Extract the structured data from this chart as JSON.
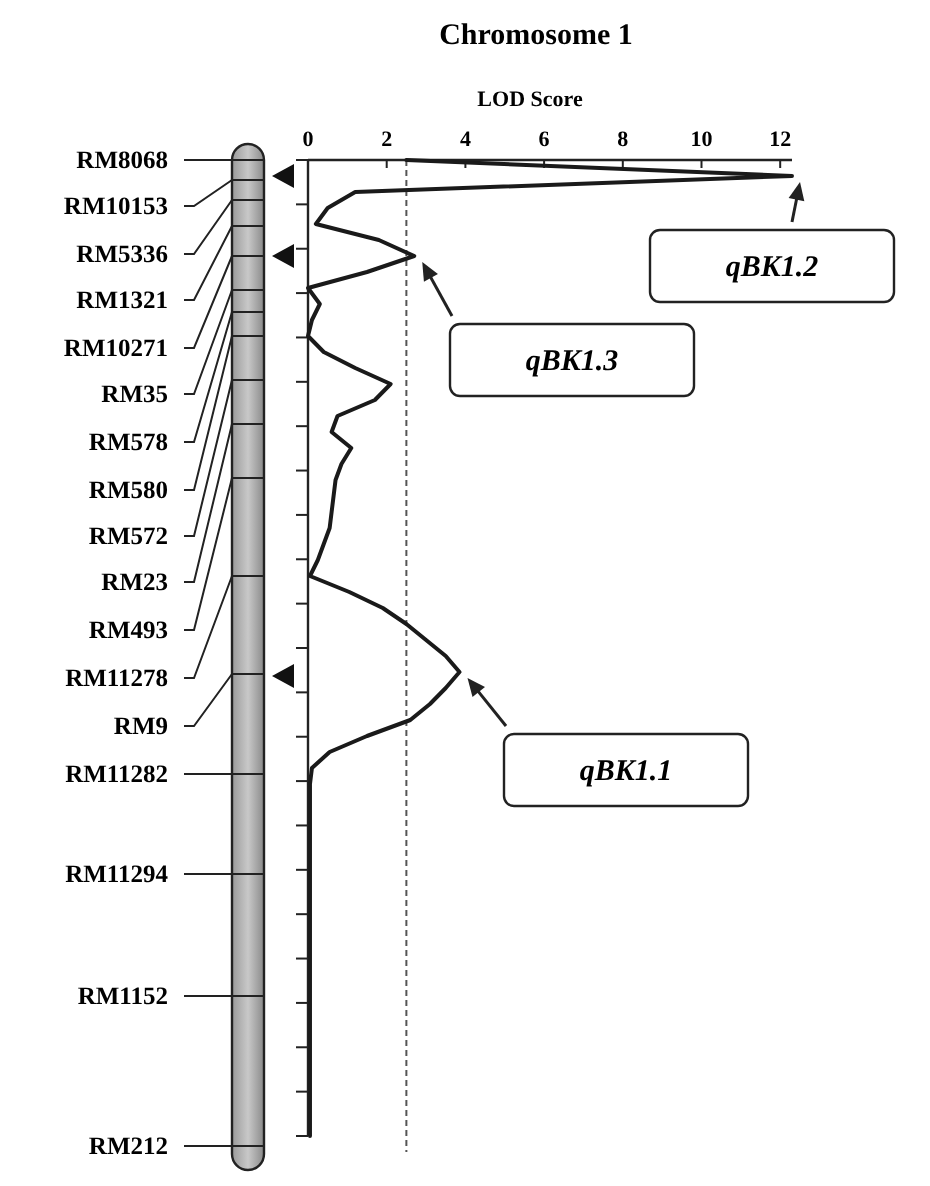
{
  "chart_data": {
    "type": "line",
    "orientation": "horizontal",
    "title": "Chromosome 1",
    "xlabel": "LOD Score",
    "categories": [
      null,
      null,
      null,
      null,
      null,
      null,
      null,
      null,
      null,
      null,
      null,
      null,
      null,
      null,
      null,
      null,
      null,
      null,
      null,
      null,
      null,
      null,
      null,
      null,
      null,
      null,
      null,
      null,
      null,
      null,
      null,
      null,
      null,
      null,
      null,
      null,
      null,
      null,
      null,
      null,
      null,
      null,
      null,
      null,
      null,
      null,
      null,
      null,
      null,
      null,
      null,
      null,
      null,
      null,
      null,
      null,
      null,
      null,
      null,
      null,
      null,
      null
    ],
    "values": [
      2.5,
      12.3,
      1.2,
      0.5,
      0.2,
      1.8,
      2.7,
      1.5,
      0.0,
      0.3,
      0.1,
      0.0,
      0.4,
      1.2,
      2.1,
      1.7,
      0.75,
      0.6,
      1.1,
      0.85,
      0.7,
      0.65,
      0.6,
      0.55,
      0.4,
      0.25,
      0.05,
      1.05,
      1.9,
      2.5,
      3.0,
      3.5,
      3.85,
      3.5,
      3.1,
      2.6,
      1.5,
      0.55,
      0.1,
      0.05,
      0.05,
      0.05,
      0.05,
      0.05,
      0.05,
      0.05,
      0.05,
      0.05,
      0.05,
      0.05,
      0.05,
      0.05,
      0.05,
      0.05,
      0.05,
      0.05,
      0.05,
      0.05,
      0.05,
      0.05,
      0.05,
      0.05
    ],
    "color": "#1a1a1a",
    "xlim": [
      0,
      12.3
    ],
    "xticks": [
      0,
      2,
      4,
      6,
      8,
      10,
      12
    ],
    "tick_labels": "x",
    "ref_lines": [
      {
        "axis": "x",
        "value": 2.5,
        "line_style": "dashed",
        "color": "#555555"
      }
    ],
    "annotations": [
      "RM8068",
      "RM10153",
      "RM5336",
      "RM1321",
      "RM10271",
      "RM35",
      "RM578",
      "RM580",
      "RM572",
      "RM23",
      "RM493",
      "RM11278",
      "RM9",
      "RM11282",
      "RM11294",
      "RM1152",
      "RM212",
      "qBK1.2",
      "qBK1.3",
      "qBK1.1"
    ]
  }
}
